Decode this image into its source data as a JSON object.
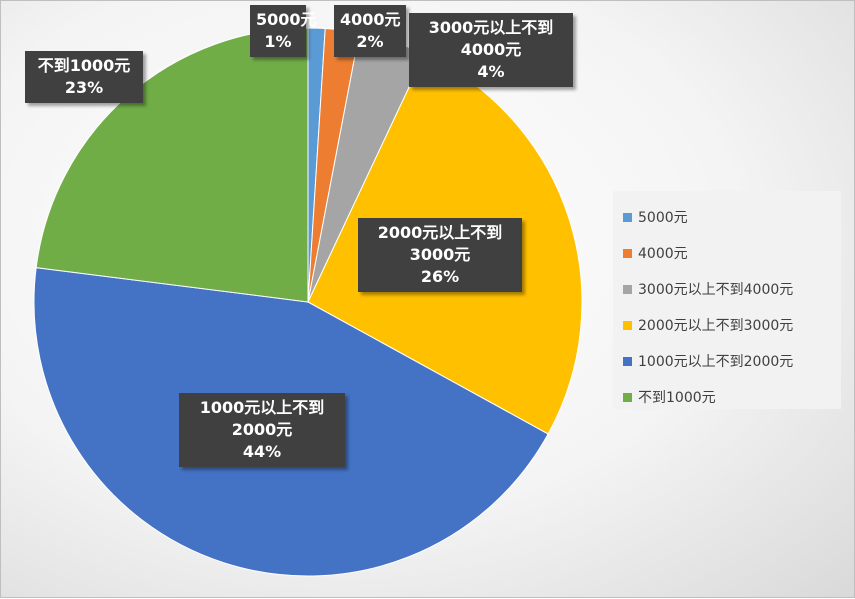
{
  "chart_data": {
    "type": "pie",
    "title": "",
    "legend_position": "right",
    "slices": [
      {
        "name": "5000元",
        "label_lines": [
          "5000元",
          "1%"
        ],
        "value": 1,
        "color": "#5B9BD5"
      },
      {
        "name": "4000元",
        "label_lines": [
          "4000元",
          "2%"
        ],
        "value": 2,
        "color": "#ED7D31"
      },
      {
        "name": "3000元以上不到4000元",
        "label_lines": [
          "3000元以上不到",
          "4000元",
          "4%"
        ],
        "value": 4,
        "color": "#A5A5A5"
      },
      {
        "name": "2000元以上不到3000元",
        "label_lines": [
          "2000元以上不到",
          "3000元",
          "26%"
        ],
        "value": 26,
        "color": "#FFC000"
      },
      {
        "name": "1000元以上不到2000元",
        "label_lines": [
          "1000元以上不到",
          "2000元",
          "44%"
        ],
        "value": 44,
        "color": "#4472C4"
      },
      {
        "name": "不到1000元",
        "label_lines": [
          "不到1000元",
          "23%"
        ],
        "value": 23,
        "color": "#70AD47"
      }
    ]
  }
}
